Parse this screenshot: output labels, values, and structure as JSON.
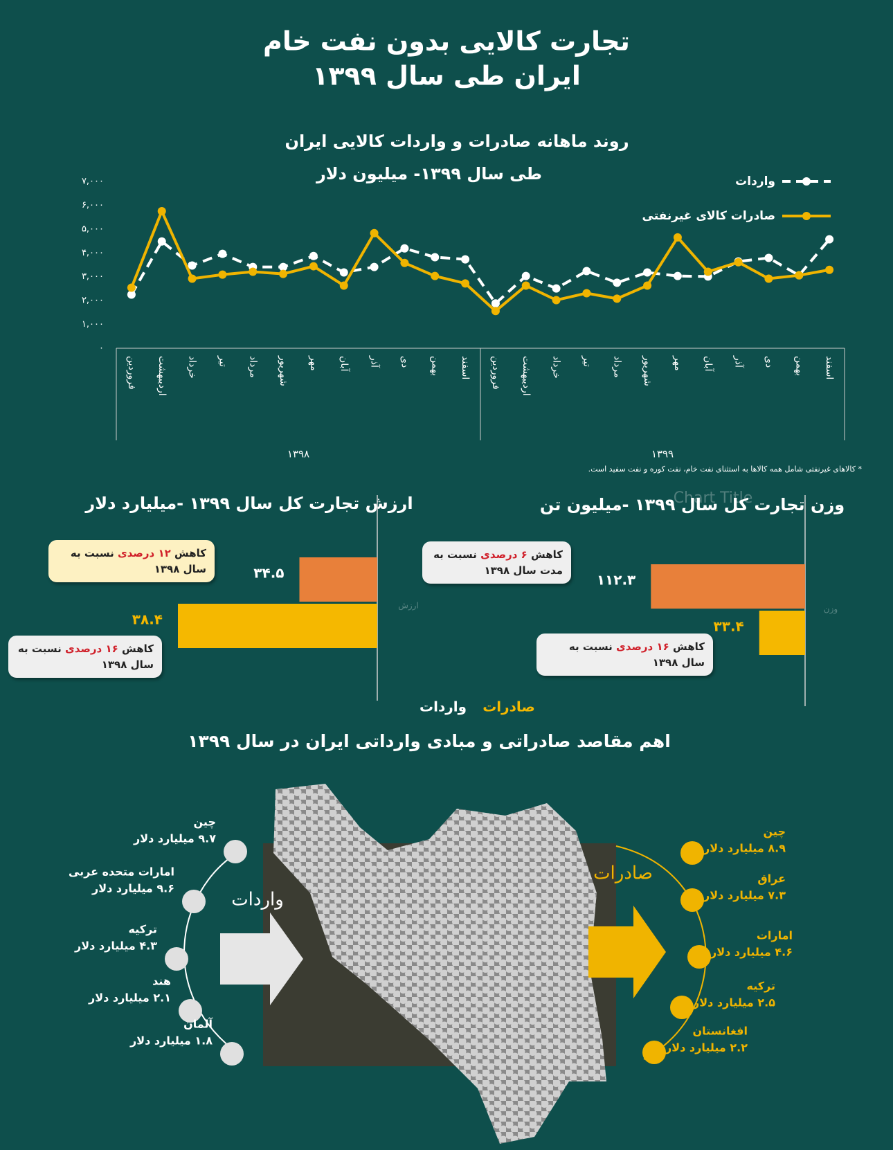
{
  "header": {
    "title_line1": "تجارت کالایی بدون نفت خام",
    "title_line2": "ایران طی سال ۱۳۹۹"
  },
  "chart_data": [
    {
      "type": "line",
      "title": "روند ماهانه صادرات و واردات کالایی ایران",
      "subtitle": "طی سال ۱۳۹۹- میلیون دلار",
      "categories": [
        "فروردین",
        "اردیبهشت",
        "خرداد",
        "تیر",
        "مرداد",
        "شهریور",
        "مهر",
        "آبان",
        "آذر",
        "دی",
        "بهمن",
        "اسفند",
        "فروردین",
        "اردیبهشت",
        "خرداد",
        "تیر",
        "مرداد",
        "شهریور",
        "مهر",
        "آبان",
        "آذر",
        "دی",
        "بهمن",
        "اسفند"
      ],
      "year_groups": [
        "۱۳۹۸",
        "۱۳۹۹"
      ],
      "series": [
        {
          "name": "واردات",
          "color": "#ffffff",
          "dashed": true,
          "values": [
            2250,
            4480,
            3470,
            3960,
            3410,
            3410,
            3870,
            3180,
            3410,
            4190,
            3820,
            3730,
            1880,
            3030,
            2510,
            3240,
            2750,
            3180,
            3030,
            3010,
            3640,
            3790,
            3060,
            4570
          ]
        },
        {
          "name": "صادرات کالای غیرنفتی",
          "color": "#f0b400",
          "dashed": false,
          "values": [
            2540,
            5750,
            2920,
            3090,
            3210,
            3120,
            3440,
            2630,
            4830,
            3580,
            3030,
            2720,
            1560,
            2630,
            2020,
            2310,
            2080,
            2630,
            4650,
            3210,
            3610,
            2920,
            3060,
            3290
          ]
        }
      ],
      "ylim": [
        0,
        7000
      ],
      "yticks": [
        {
          "value": 0,
          "label": "۰"
        },
        {
          "value": 1000,
          "label": "۱,۰۰۰"
        },
        {
          "value": 2000,
          "label": "۲,۰۰۰"
        },
        {
          "value": 3000,
          "label": "۳,۰۰۰"
        },
        {
          "value": 4000,
          "label": "۴,۰۰۰"
        },
        {
          "value": 5000,
          "label": "۵,۰۰۰"
        },
        {
          "value": 6000,
          "label": "۶,۰۰۰"
        },
        {
          "value": 7000,
          "label": "۷,۰۰۰"
        }
      ],
      "grid": false,
      "legend": "top-right",
      "footnote": "* کالاهای غیرنفتی شامل همه کالاها به استثنای نفت خام، نفت کوره و نفت سفید است."
    },
    {
      "type": "barh",
      "title": "ارزش تجارت کل سال ۱۳۹۹ -میلیارد دلار",
      "categories": [
        "ارزش"
      ],
      "series": [
        {
          "name": "واردات",
          "color": "#e8803a",
          "text_color": "#ffffff",
          "values": [
            34.5
          ],
          "value_labels": [
            "۳۴.۵"
          ]
        },
        {
          "name": "صادرات",
          "color": "#f5b800",
          "text_color": "#f5b800",
          "values": [
            38.4
          ],
          "value_labels": [
            "۳۸.۴"
          ]
        }
      ],
      "xlim": [
        32,
        40
      ],
      "annotations": [
        [
          "کاهش",
          "۱۲ درصدی",
          "نسبت به سال ۱۳۹۸"
        ],
        [
          "کاهش",
          "۱۶ درصدی",
          "نسبت به سال ۱۳۹۸"
        ]
      ]
    },
    {
      "type": "barh",
      "title": "وزن تجارت کل سال ۱۳۹۹ -میلیون تن",
      "ghost_title": "Chart Title",
      "categories": [
        "وزن"
      ],
      "series": [
        {
          "color": "#e8803a",
          "text_color": "#ffffff",
          "values": [
            112.3
          ],
          "value_labels": [
            "۱۱۲.۳"
          ]
        },
        {
          "color": "#f5b800",
          "text_color": "#f5b800",
          "values": [
            33.4
          ],
          "value_labels": [
            "۳۳.۴"
          ]
        }
      ],
      "xlim": [
        0,
        120
      ],
      "annotations": [
        [
          "کاهش",
          "۶ درصدی",
          "نسبت به مدت سال ۱۳۹۸"
        ],
        [
          "کاهش",
          "۱۶ درصدی",
          "نسبت به سال ۱۳۹۸"
        ]
      ]
    }
  ],
  "map": {
    "title": "اهم مقاصد صادراتی و مبادی وارداتی ایران در سال ۱۳۹۹",
    "imports": {
      "label": "واردات",
      "items": [
        {
          "country": "چین",
          "amount": "۹.۷ میلیارد دلار"
        },
        {
          "country": "امارات متحده عربی",
          "amount": "۹.۶ میلیارد دلار"
        },
        {
          "country": "ترکیه",
          "amount": "۴.۳ میلیارد دلار"
        },
        {
          "country": "هند",
          "amount": "۲.۱ میلیارد دلار"
        },
        {
          "country": "آلمان",
          "amount": "۱.۸ میلیارد دلار"
        }
      ]
    },
    "exports": {
      "label": "صادرات",
      "items": [
        {
          "country": "چین",
          "amount": "۸.۹ میلیارد دلار"
        },
        {
          "country": "عراق",
          "amount": "۷.۳ میلیارد دلار"
        },
        {
          "country": "امارات",
          "amount": "۴.۶ میلیارد دلار"
        },
        {
          "country": "ترکیه",
          "amount": "۲.۵ میلیارد دلار"
        },
        {
          "country": "افغانستان",
          "amount": "۲.۲ میلیارد دلار"
        }
      ]
    }
  }
}
